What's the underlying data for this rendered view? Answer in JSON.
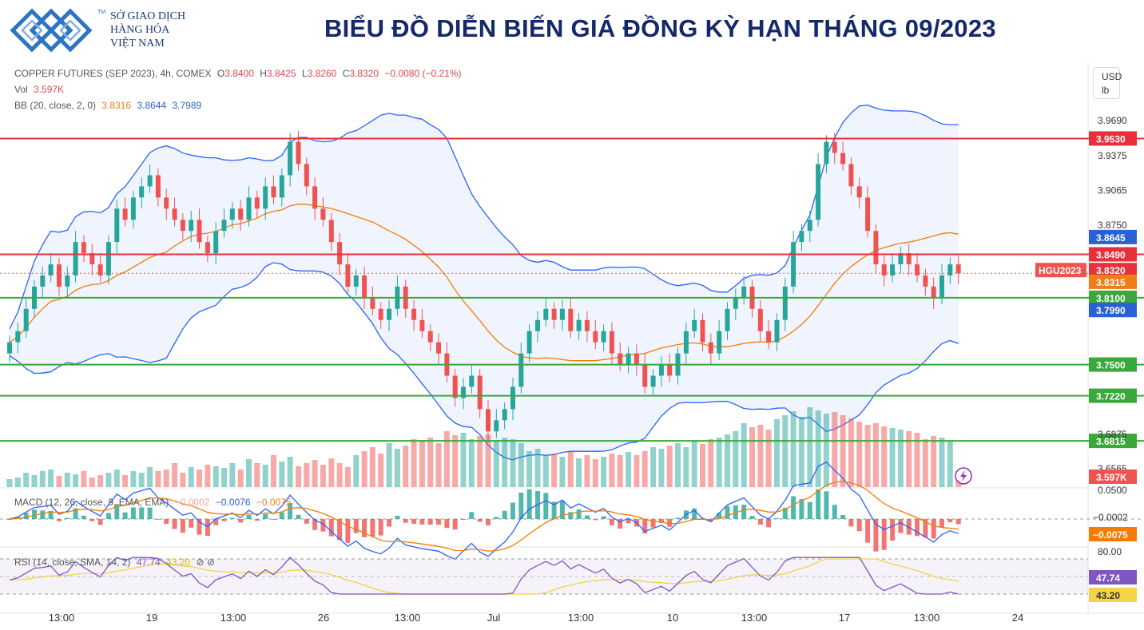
{
  "header": {
    "logo_lines": [
      "SỞ GIAO DỊCH",
      "HÀNG HÓA",
      "VIỆT NAM"
    ],
    "logo_mark": "TM",
    "title": "BIỂU ĐỒ DIỄN BIẾN GIÁ ĐỒNG KỲ HẠN THÁNG 09/2023"
  },
  "legend": {
    "symbol": "COPPER FUTURES (SEP 2023), 4h, COMEX",
    "o_label": "O",
    "o_value": "3.8400",
    "h_label": "H",
    "h_value": "3.8425",
    "l_label": "L",
    "l_value": "3.8260",
    "c_label": "C",
    "c_value": "3.8320",
    "change": "−0.0080 (−0.21%)",
    "vol_label": "Vol",
    "vol_value": "3.597K",
    "bb_label": "BB (20, close, 2, 0)",
    "bb_basis": "3.8316",
    "bb_upper": "3.8644",
    "bb_lower": "3.7989",
    "macd_label": "MACD (12, 26, close, 9, EMA, EMA)",
    "macd_hist": "−0.0002",
    "macd_line": "−0.0076",
    "macd_signal": "−0.0075",
    "rsi_label": "RSI (14, close, SMA, 14, 2)",
    "rsi_value": "47.74",
    "rsi_ma": "43.20",
    "rsi_extra": "⊘ ⊘"
  },
  "currency": [
    "USD",
    "lb"
  ],
  "chart_data": {
    "type": "candlestick",
    "instrument": "COPPER FUTURES (SEP 2023), 4h, COMEX",
    "price_axis_ticks": [
      "3.9690",
      "3.9375",
      "3.9065",
      "3.8750",
      "3.6875",
      "3.6565",
      "0.0500"
    ],
    "y_range": [
      3.64,
      4.02
    ],
    "x_ticks": [
      "13:00",
      "19",
      "13:00",
      "26",
      "13:00",
      "Jul",
      "13:00",
      "10",
      "13:00",
      "17",
      "13:00",
      "24"
    ],
    "horizontal_levels": [
      {
        "value": 3.953,
        "label": "3.9530",
        "color": "#e8303c"
      },
      {
        "value": 3.849,
        "label": "3.8490",
        "color": "#e8303c"
      },
      {
        "value": 3.81,
        "label": "3.8100",
        "color": "#3aa83a"
      },
      {
        "value": 3.75,
        "label": "3.7500",
        "color": "#3aa83a"
      },
      {
        "value": 3.722,
        "label": "3.7220",
        "color": "#3aa83a"
      },
      {
        "value": 3.6815,
        "label": "3.6815",
        "color": "#3aa83a"
      }
    ],
    "price_labels": [
      {
        "value": 3.8645,
        "label": "3.8645",
        "color": "#2a62d6"
      },
      {
        "value": 3.832,
        "label": "3.8320",
        "color": "#e8303c"
      },
      {
        "value": 3.8315,
        "label": "3.8315",
        "color": "#ef7d1a"
      },
      {
        "value": 3.799,
        "label": "3.7990",
        "color": "#2a62d6"
      }
    ],
    "symbol_tag": "HGU2023",
    "volume_tag": "3.597K",
    "close_series": [
      3.77,
      3.78,
      3.8,
      3.82,
      3.83,
      3.84,
      3.82,
      3.83,
      3.86,
      3.85,
      3.84,
      3.83,
      3.86,
      3.89,
      3.88,
      3.9,
      3.91,
      3.92,
      3.9,
      3.89,
      3.88,
      3.87,
      3.88,
      3.86,
      3.85,
      3.87,
      3.88,
      3.89,
      3.88,
      3.9,
      3.89,
      3.91,
      3.9,
      3.92,
      3.95,
      3.93,
      3.91,
      3.89,
      3.88,
      3.86,
      3.84,
      3.82,
      3.83,
      3.81,
      3.8,
      3.79,
      3.8,
      3.82,
      3.8,
      3.79,
      3.78,
      3.77,
      3.76,
      3.74,
      3.72,
      3.73,
      3.74,
      3.71,
      3.69,
      3.7,
      3.71,
      3.73,
      3.76,
      3.78,
      3.79,
      3.8,
      3.79,
      3.8,
      3.78,
      3.79,
      3.78,
      3.77,
      3.78,
      3.76,
      3.75,
      3.76,
      3.75,
      3.73,
      3.74,
      3.75,
      3.74,
      3.76,
      3.78,
      3.79,
      3.77,
      3.76,
      3.78,
      3.8,
      3.81,
      3.82,
      3.8,
      3.78,
      3.77,
      3.79,
      3.82,
      3.86,
      3.87,
      3.88,
      3.93,
      3.95,
      3.94,
      3.93,
      3.91,
      3.9,
      3.87,
      3.84,
      3.83,
      3.84,
      3.85,
      3.84,
      3.83,
      3.82,
      3.81,
      3.83,
      3.84,
      3.832
    ],
    "volume_values": [
      10,
      12,
      18,
      15,
      20,
      22,
      14,
      18,
      16,
      20,
      12,
      15,
      18,
      22,
      15,
      20,
      18,
      25,
      20,
      22,
      30,
      18,
      25,
      22,
      28,
      26,
      24,
      30,
      22,
      35,
      30,
      28,
      40,
      32,
      38,
      26,
      30,
      34,
      28,
      36,
      30,
      25,
      40,
      45,
      50,
      42,
      55,
      48,
      52,
      60,
      58,
      62,
      55,
      70,
      65,
      68,
      60,
      64,
      66,
      58,
      62,
      60,
      55,
      45,
      48,
      40,
      42,
      38,
      44,
      36,
      40,
      35,
      38,
      42,
      40,
      44,
      40,
      45,
      50,
      48,
      52,
      55,
      50,
      58,
      54,
      60,
      62,
      66,
      70,
      80,
      75,
      78,
      72,
      85,
      90,
      95,
      88,
      100,
      96,
      92,
      94,
      90,
      86,
      82,
      78,
      80,
      76,
      74,
      72,
      70,
      68,
      60,
      64,
      62,
      58,
      20
    ]
  }
}
